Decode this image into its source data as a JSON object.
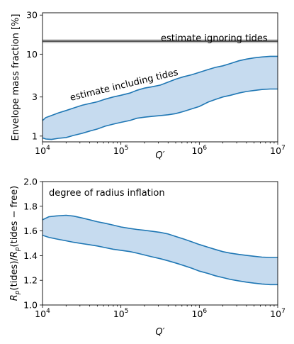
{
  "chart_data": [
    {
      "type": "area",
      "ylabel": "Envelope mass fraction [%]",
      "xlabel": "Q′",
      "xscale": "log",
      "yscale": "log",
      "xlim": [
        10000,
        10000000
      ],
      "ylim": [
        0.85,
        32
      ],
      "x_ticks": [
        {
          "value": 10000,
          "base": "10",
          "exp": "4"
        },
        {
          "value": 100000,
          "base": "10",
          "exp": "5"
        },
        {
          "value": 1000000,
          "base": "10",
          "exp": "6"
        },
        {
          "value": 10000000,
          "base": "10",
          "exp": "7"
        }
      ],
      "y_ticks": [
        {
          "value": 1,
          "label": "1"
        },
        {
          "value": 3,
          "label": "3"
        },
        {
          "value": 10,
          "label": "10"
        },
        {
          "value": 30,
          "label": "30"
        }
      ],
      "band": {
        "name": "estimate including tides",
        "color": "#1f77b4",
        "fill": "#c6dbef",
        "x": [
          10000,
          11000,
          13000,
          16000,
          20000,
          25000,
          32000,
          40000,
          50000,
          63000,
          80000,
          100000,
          130000,
          160000,
          200000,
          250000,
          320000,
          400000,
          500000,
          630000,
          800000,
          1000000,
          1300000,
          1600000,
          2000000,
          2500000,
          3200000,
          4000000,
          5000000,
          6300000,
          8000000,
          10000000
        ],
        "upper": [
          1.55,
          1.68,
          1.78,
          1.92,
          2.05,
          2.2,
          2.38,
          2.5,
          2.62,
          2.82,
          3.0,
          3.15,
          3.35,
          3.62,
          3.85,
          4.0,
          4.2,
          4.55,
          4.95,
          5.3,
          5.6,
          6.0,
          6.5,
          6.9,
          7.2,
          7.7,
          8.3,
          8.7,
          9.0,
          9.25,
          9.4,
          9.4
        ],
        "lower": [
          0.95,
          0.92,
          0.91,
          0.94,
          0.96,
          1.02,
          1.08,
          1.15,
          1.22,
          1.32,
          1.4,
          1.47,
          1.55,
          1.65,
          1.7,
          1.74,
          1.78,
          1.82,
          1.88,
          2.0,
          2.15,
          2.3,
          2.6,
          2.8,
          3.0,
          3.15,
          3.35,
          3.5,
          3.6,
          3.7,
          3.75,
          3.75
        ]
      },
      "reference": {
        "name": "estimate ignoring tides",
        "value": 14.4,
        "band": [
          13.6,
          15.2
        ],
        "color": "#555555",
        "band_color": "#c8c8c8"
      },
      "annotations": [
        "estimate ignoring tides",
        "estimate including tides"
      ],
      "grid": false
    },
    {
      "type": "area",
      "ylabel_parts": {
        "r1": "R",
        "s1": "p",
        "m1": "(tides)/",
        "r2": "R",
        "s2": "p",
        "m2": "(tides − free)"
      },
      "xlabel": "Q′",
      "xscale": "log",
      "xlim": [
        10000,
        10000000
      ],
      "ylim": [
        1.0,
        2.0
      ],
      "x_ticks": [
        {
          "value": 10000,
          "base": "10",
          "exp": "4"
        },
        {
          "value": 100000,
          "base": "10",
          "exp": "5"
        },
        {
          "value": 1000000,
          "base": "10",
          "exp": "6"
        },
        {
          "value": 10000000,
          "base": "10",
          "exp": "7"
        }
      ],
      "y_ticks": [
        {
          "value": 1.0,
          "label": "1.0"
        },
        {
          "value": 1.2,
          "label": "1.2"
        },
        {
          "value": 1.4,
          "label": "1.4"
        },
        {
          "value": 1.6,
          "label": "1.6"
        },
        {
          "value": 1.8,
          "label": "1.8"
        },
        {
          "value": 2.0,
          "label": "2.0"
        }
      ],
      "band": {
        "name": "degree of radius inflation",
        "color": "#1f77b4",
        "fill": "#c6dbef",
        "x": [
          10000,
          12000,
          15000,
          20000,
          25000,
          32000,
          40000,
          50000,
          63000,
          80000,
          100000,
          130000,
          160000,
          200000,
          250000,
          320000,
          400000,
          500000,
          630000,
          800000,
          1000000,
          1300000,
          1600000,
          2000000,
          2500000,
          3200000,
          4000000,
          5000000,
          6300000,
          8000000,
          10000000
        ],
        "upper": [
          1.69,
          1.715,
          1.722,
          1.727,
          1.72,
          1.705,
          1.69,
          1.675,
          1.662,
          1.647,
          1.632,
          1.62,
          1.612,
          1.605,
          1.597,
          1.588,
          1.575,
          1.555,
          1.535,
          1.512,
          1.49,
          1.468,
          1.45,
          1.432,
          1.42,
          1.41,
          1.402,
          1.395,
          1.388,
          1.385,
          1.385
        ],
        "lower": [
          1.565,
          1.548,
          1.535,
          1.52,
          1.508,
          1.497,
          1.488,
          1.478,
          1.465,
          1.452,
          1.443,
          1.433,
          1.42,
          1.405,
          1.39,
          1.375,
          1.358,
          1.34,
          1.32,
          1.298,
          1.275,
          1.255,
          1.237,
          1.222,
          1.207,
          1.195,
          1.185,
          1.177,
          1.17,
          1.165,
          1.165
        ]
      },
      "annotations": [
        "degree of radius inflation"
      ],
      "grid": false
    }
  ]
}
